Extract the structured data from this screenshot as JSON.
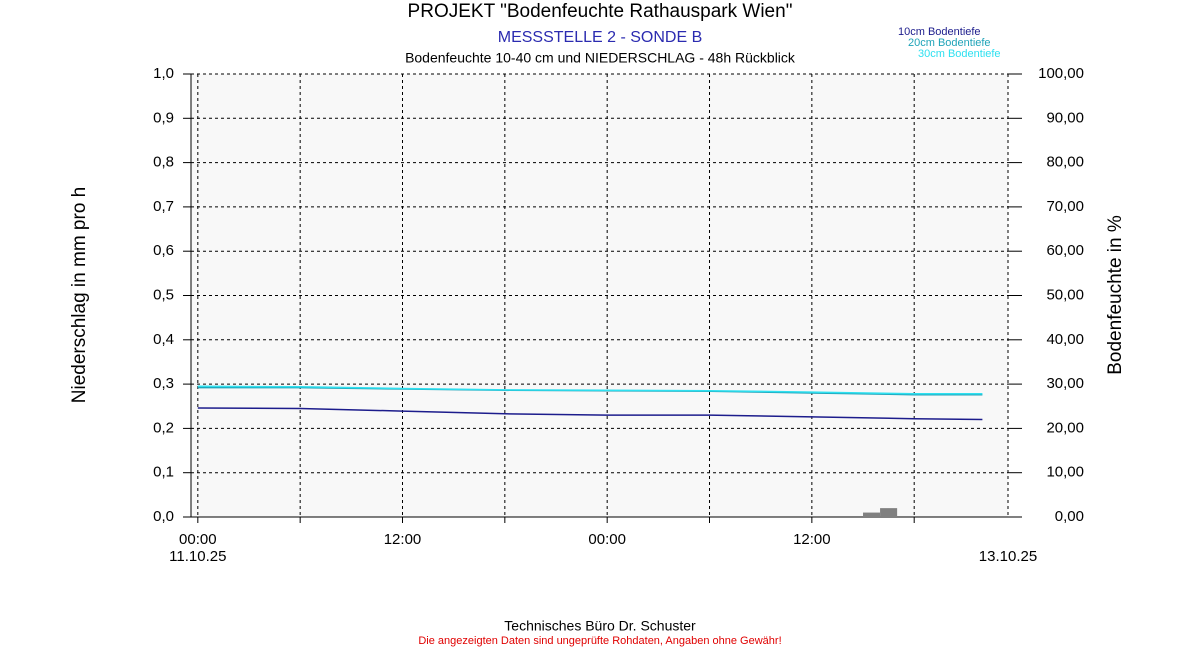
{
  "chart_data": {
    "type": "line",
    "title": "PROJEKT \"Bodenfeuchte Rathauspark Wien\"",
    "subtitle": "MESSSTELLE 2 - SONDE B",
    "description": "Bodenfeuchte 10-40 cm und NIEDERSCHLAG - 48h Rückblick",
    "y_label": "Niederschlag in mm pro h",
    "y2_label": "Bodenfeuchte in %",
    "footer": "Technisches Büro Dr. Schuster",
    "disclaimer": "Die angezeigten Daten sind ungeprüfte Rohdaten, Angaben ohne Gewähr!",
    "xlim": [
      -0.4,
      47.5
    ],
    "xticks": [
      {
        "value": 0,
        "label": "00:00"
      },
      {
        "value": 12,
        "label": "12:00"
      },
      {
        "value": 24,
        "label": "00:00"
      },
      {
        "value": 36,
        "label": "12:00"
      }
    ],
    "xminor": [
      6,
      18,
      30,
      42
    ],
    "x_date_labels": [
      {
        "value": 0,
        "label": "11.10.25"
      },
      {
        "value": 47.5,
        "label": "13.10.25"
      }
    ],
    "ylim": [
      0,
      1
    ],
    "yticks": [
      {
        "value": 0,
        "label": "0,0"
      },
      {
        "value": 0.1,
        "label": "0,1"
      },
      {
        "value": 0.2,
        "label": "0,2"
      },
      {
        "value": 0.3,
        "label": "0,3"
      },
      {
        "value": 0.4,
        "label": "0,4"
      },
      {
        "value": 0.5,
        "label": "0,5"
      },
      {
        "value": 0.6,
        "label": "0,6"
      },
      {
        "value": 0.7,
        "label": "0,7"
      },
      {
        "value": 0.8,
        "label": "0,8"
      },
      {
        "value": 0.9,
        "label": "0,9"
      },
      {
        "value": 1,
        "label": "1,0"
      }
    ],
    "y2lim": [
      0,
      100
    ],
    "y2ticks": [
      {
        "value": 0,
        "label": "0,00"
      },
      {
        "value": 10,
        "label": "10,00"
      },
      {
        "value": 20,
        "label": "20,00"
      },
      {
        "value": 30,
        "label": "30,00"
      },
      {
        "value": 40,
        "label": "40,00"
      },
      {
        "value": 50,
        "label": "50,00"
      },
      {
        "value": 60,
        "label": "60,00"
      },
      {
        "value": 70,
        "label": "70,00"
      },
      {
        "value": 80,
        "label": "80,00"
      },
      {
        "value": 90,
        "label": "90,00"
      },
      {
        "value": 100,
        "label": "100,00"
      }
    ],
    "grid": true,
    "x": [
      0,
      6,
      12,
      18,
      24,
      30,
      36,
      42,
      46
    ],
    "series": [
      {
        "name": "10cm Bodentiefe",
        "color": "#1c1c8c",
        "axis": "y2",
        "values": [
          24.6,
          24.5,
          23.9,
          23.3,
          23.0,
          23.0,
          22.6,
          22.2,
          22.0
        ]
      },
      {
        "name": "20cm Bodentiefe",
        "color": "#1fa3b8",
        "axis": "y2",
        "values": [
          29.2,
          29.2,
          28.9,
          28.6,
          28.5,
          28.4,
          28.0,
          27.6,
          27.6
        ]
      },
      {
        "name": "30cm Bodentiefe",
        "color": "#2ee0f0",
        "axis": "y2",
        "values": [
          29.5,
          29.4,
          29.0,
          28.7,
          28.6,
          28.5,
          28.2,
          27.8,
          27.8
        ]
      }
    ],
    "precipitation": {
      "color": "#808080",
      "bins": [
        39,
        40,
        41
      ],
      "values": [
        0.01,
        0.02
      ]
    }
  }
}
